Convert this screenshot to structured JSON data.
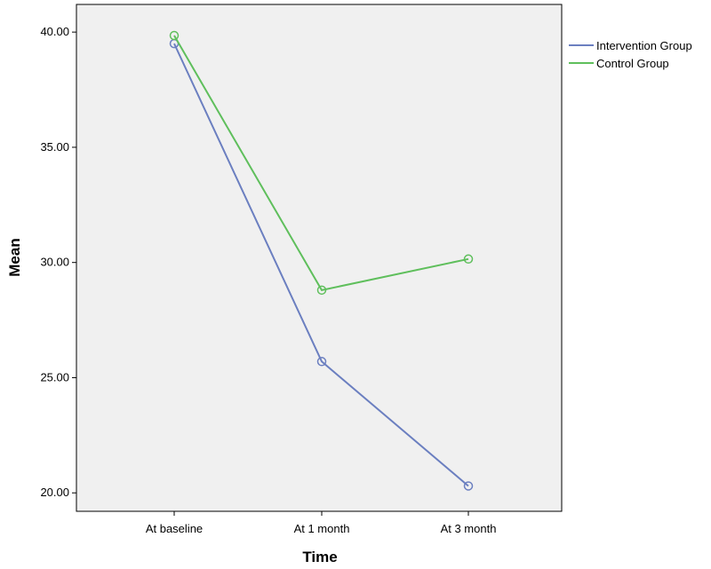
{
  "chart_data": {
    "type": "line",
    "xlabel": "Time",
    "ylabel": "Mean",
    "categories": [
      "At baseline",
      "At 1 month",
      "At 3 month"
    ],
    "y_ticks": [
      "20.00",
      "25.00",
      "30.00",
      "35.00",
      "40.00"
    ],
    "y_tick_values": [
      20,
      25,
      30,
      35,
      40
    ],
    "ylim": [
      19.2,
      41.2
    ],
    "grid": false,
    "legend_position": "top-right, outside plot area",
    "markers": "open circles",
    "series": [
      {
        "name": "Intervention Group",
        "color": "#6b7fc0",
        "values": [
          39.5,
          25.7,
          20.3
        ]
      },
      {
        "name": "Control Group",
        "color": "#5fbf5c",
        "values": [
          39.85,
          28.8,
          30.15
        ]
      }
    ]
  },
  "colors": {
    "plot_background": "#f0f0f0",
    "frame": "#000000"
  }
}
